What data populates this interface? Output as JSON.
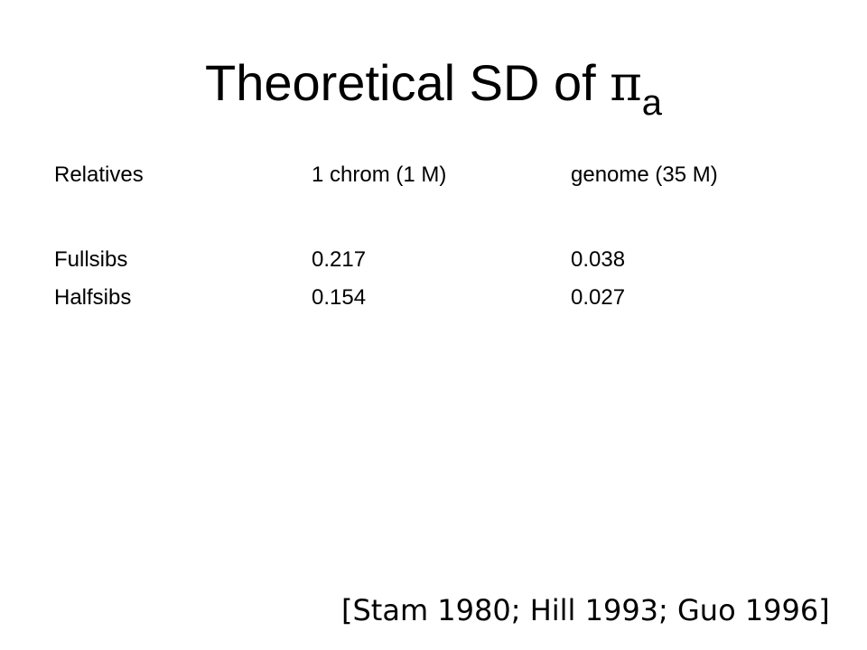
{
  "slide": {
    "title": {
      "text": "Theoretical SD of",
      "symbol": "π",
      "subscript": "a"
    },
    "table": {
      "headers": [
        "Relatives",
        "1 chrom (1 M)",
        "genome (35 M)"
      ],
      "rows": [
        [
          "Fullsibs",
          "0.217",
          "0.038"
        ],
        [
          "Halfsibs",
          "0.154",
          "0.027"
        ]
      ]
    },
    "citation": "[Stam 1980; Hill 1993; Guo 1996]"
  }
}
